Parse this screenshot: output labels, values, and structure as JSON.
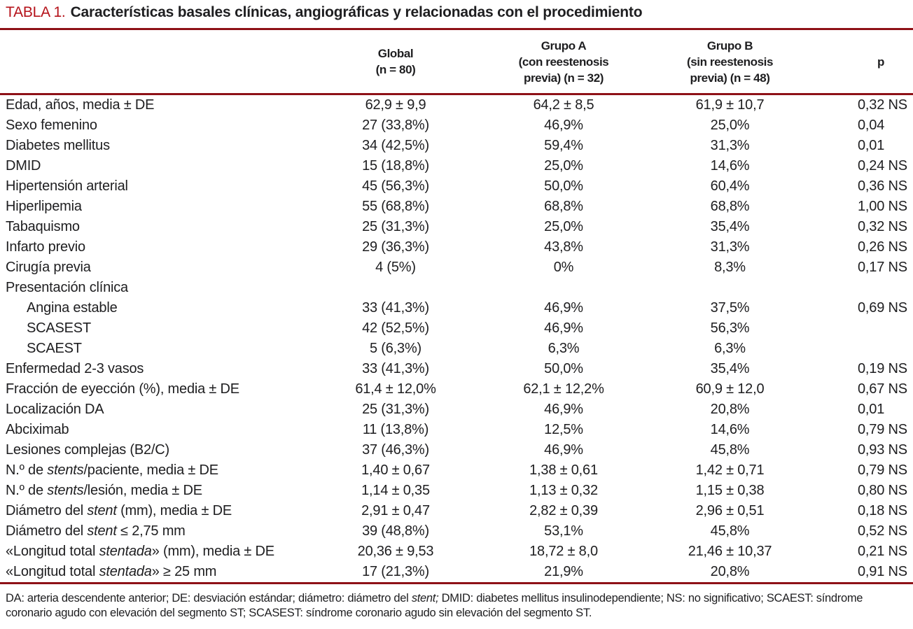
{
  "title": {
    "tag": "TABLA 1.",
    "text": "Características basales clínicas, angiográficas y relacionadas con el procedimiento"
  },
  "colors": {
    "title_red": "#b5121a",
    "rule_red": "#8e1117",
    "text_ink": "#1e1e20"
  },
  "table": {
    "columns": [
      {
        "id": "label",
        "lines": []
      },
      {
        "id": "global",
        "lines": [
          "Global",
          "(n = 80)"
        ]
      },
      {
        "id": "grupo_a",
        "lines": [
          "Grupo A",
          "(con reestenosis",
          "previa) (n = 32)"
        ]
      },
      {
        "id": "grupo_b",
        "lines": [
          "Grupo B",
          "(sin reestenosis",
          "previa) (n = 48)"
        ]
      },
      {
        "id": "p",
        "lines": [
          "p"
        ]
      }
    ],
    "rows": [
      {
        "label": [
          [
            "Edad, años, media ± DE"
          ]
        ],
        "global": "62,9 ± 9,9",
        "grupo_a": "64,2 ± 8,5",
        "grupo_b": "61,9 ± 10,7",
        "p": "0,32 NS"
      },
      {
        "label": [
          [
            "Sexo femenino"
          ]
        ],
        "global": "27 (33,8%)",
        "grupo_a": "46,9%",
        "grupo_b": "25,0%",
        "p": "0,04"
      },
      {
        "label": [
          [
            "Diabetes mellitus"
          ]
        ],
        "global": "34 (42,5%)",
        "grupo_a": "59,4%",
        "grupo_b": "31,3%",
        "p": "0,01"
      },
      {
        "label": [
          [
            "DMID"
          ]
        ],
        "global": "15 (18,8%)",
        "grupo_a": "25,0%",
        "grupo_b": "14,6%",
        "p": "0,24 NS"
      },
      {
        "label": [
          [
            "Hipertensión arterial"
          ]
        ],
        "global": "45 (56,3%)",
        "grupo_a": "50,0%",
        "grupo_b": "60,4%",
        "p": "0,36 NS"
      },
      {
        "label": [
          [
            "Hiperlipemia"
          ]
        ],
        "global": "55 (68,8%)",
        "grupo_a": "68,8%",
        "grupo_b": "68,8%",
        "p": "1,00 NS"
      },
      {
        "label": [
          [
            "Tabaquismo"
          ]
        ],
        "global": "25 (31,3%)",
        "grupo_a": "25,0%",
        "grupo_b": "35,4%",
        "p": "0,32 NS"
      },
      {
        "label": [
          [
            "Infarto previo"
          ]
        ],
        "global": "29 (36,3%)",
        "grupo_a": "43,8%",
        "grupo_b": "31,3%",
        "p": "0,26 NS"
      },
      {
        "label": [
          [
            "Cirugía previa"
          ]
        ],
        "global": "4 (5%)",
        "grupo_a": "0%",
        "grupo_b": "8,3%",
        "p": "0,17 NS"
      },
      {
        "label": [
          [
            "Presentación clínica"
          ]
        ],
        "global": "",
        "grupo_a": "",
        "grupo_b": "",
        "p": ""
      },
      {
        "label": [
          [
            "Angina estable"
          ]
        ],
        "indent": true,
        "global": "33 (41,3%)",
        "grupo_a": "46,9%",
        "grupo_b": "37,5%",
        "p": "0,69 NS"
      },
      {
        "label": [
          [
            "SCASEST"
          ]
        ],
        "indent": true,
        "global": "42 (52,5%)",
        "grupo_a": "46,9%",
        "grupo_b": "56,3%",
        "p": ""
      },
      {
        "label": [
          [
            "SCAEST"
          ]
        ],
        "indent": true,
        "global": "5 (6,3%)",
        "grupo_a": "6,3%",
        "grupo_b": "6,3%",
        "p": ""
      },
      {
        "label": [
          [
            "Enfermedad 2-3 vasos"
          ]
        ],
        "global": "33 (41,3%)",
        "grupo_a": "50,0%",
        "grupo_b": "35,4%",
        "p": "0,19 NS"
      },
      {
        "label": [
          [
            "Fracción de eyección (%), media ± DE"
          ]
        ],
        "global": "61,4 ± 12,0%",
        "grupo_a": "62,1 ± 12,2%",
        "grupo_b": "60,9 ± 12,0",
        "p": "0,67 NS"
      },
      {
        "label": [
          [
            "Localización DA"
          ]
        ],
        "global": "25 (31,3%)",
        "grupo_a": "46,9%",
        "grupo_b": "20,8%",
        "p": "0,01"
      },
      {
        "label": [
          [
            "Abciximab"
          ]
        ],
        "global": "11 (13,8%)",
        "grupo_a": "12,5%",
        "grupo_b": "14,6%",
        "p": "0,79 NS"
      },
      {
        "label": [
          [
            "Lesiones complejas (B2/C)"
          ]
        ],
        "global": "37 (46,3%)",
        "grupo_a": "46,9%",
        "grupo_b": "45,8%",
        "p": "0,93 NS"
      },
      {
        "label": [
          [
            "N.º de "
          ],
          [
            "stents",
            true
          ],
          [
            "/paciente, media ± DE"
          ]
        ],
        "global": "1,40 ± 0,67",
        "grupo_a": "1,38 ± 0,61",
        "grupo_b": "1,42 ± 0,71",
        "p": "0,79 NS"
      },
      {
        "label": [
          [
            "N.º de "
          ],
          [
            "stents",
            true
          ],
          [
            "/lesión, media ± DE"
          ]
        ],
        "global": "1,14 ± 0,35",
        "grupo_a": "1,13 ± 0,32",
        "grupo_b": "1,15 ± 0,38",
        "p": "0,80 NS"
      },
      {
        "label": [
          [
            "Diámetro del "
          ],
          [
            "stent",
            true
          ],
          [
            " (mm), media ± DE"
          ]
        ],
        "global": "2,91 ± 0,47",
        "grupo_a": "2,82 ± 0,39",
        "grupo_b": "2,96 ± 0,51",
        "p": "0,18 NS"
      },
      {
        "label": [
          [
            "Diámetro del "
          ],
          [
            "stent",
            true
          ],
          [
            " ≤ 2,75 mm"
          ]
        ],
        "global": "39 (48,8%)",
        "grupo_a": "53,1%",
        "grupo_b": "45,8%",
        "p": "0,52 NS"
      },
      {
        "label": [
          [
            "«Longitud total "
          ],
          [
            "stentada",
            true
          ],
          [
            "» (mm), media ± DE"
          ]
        ],
        "global": "20,36 ± 9,53",
        "grupo_a": "18,72 ± 8,0",
        "grupo_b": "21,46 ± 10,37",
        "p": "0,21 NS"
      },
      {
        "label": [
          [
            "«Longitud total "
          ],
          [
            "stentada",
            true
          ],
          [
            "» ≥ 25 mm"
          ]
        ],
        "global": "17 (21,3%)",
        "grupo_a": "21,9%",
        "grupo_b": "20,8%",
        "p": "0,91 NS"
      }
    ]
  },
  "footnote": [
    [
      "DA: arteria descendente anterior; DE: desviación estándar; diámetro: diámetro del "
    ],
    [
      "stent;",
      true
    ],
    [
      " DMID: diabetes mellitus insulinodependiente; NS: no significativo; SCAEST: síndrome coronario agudo con elevación del segmento ST; SCASEST: síndrome coronario agudo sin elevación del segmento ST."
    ]
  ]
}
